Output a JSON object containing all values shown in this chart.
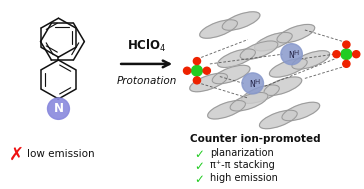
{
  "background_color": "#ffffff",
  "arrow_label_top": "HClO$_4$",
  "arrow_label_bottom": "Protonation",
  "left_bottom_text": "low emission",
  "right_header": "Counter ion-promoted",
  "check_items": [
    "planarization",
    "π⁺-π stacking",
    "high emission"
  ],
  "cross_color": "#ee1111",
  "check_color": "#22cc22",
  "arrow_color": "#111111",
  "text_color": "#111111",
  "mol_color": "#111111",
  "n_circle_color": "#8888dd",
  "ring_gray": "#cccccc",
  "ring_edge": "#999999",
  "cl_color": "#22cc22",
  "o_color": "#ee2200",
  "nh_color": "#8899cc",
  "figsize": [
    3.64,
    1.89
  ],
  "dpi": 100
}
